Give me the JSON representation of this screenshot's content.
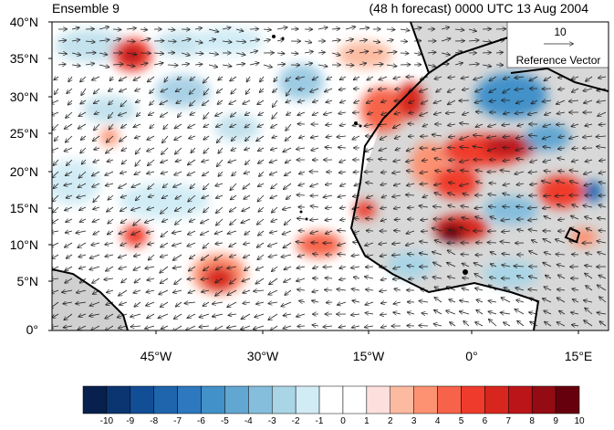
{
  "header": {
    "left_title": "Ensemble 9",
    "right_title": "(48 h forecast) 0000 UTC 13 Aug 2004"
  },
  "map": {
    "lat_labels": [
      "40°N",
      "35°N",
      "30°N",
      "25°N",
      "20°N",
      "15°N",
      "10°N",
      "5°N",
      "0°"
    ],
    "lon_labels": [
      "45°W",
      "30°W",
      "15°W",
      "0°",
      "15°E"
    ],
    "land_color": "#d0d0d0",
    "ocean_color": "#ffffff"
  },
  "reference_vector": {
    "value": "10",
    "label": "Reference Vector"
  },
  "colorbar": {
    "labels": [
      "-10",
      "-9",
      "-8",
      "-7",
      "-6",
      "-5",
      "-4",
      "-3",
      "-2",
      "-1",
      "0",
      "1",
      "2",
      "3",
      "4",
      "5",
      "6",
      "7",
      "8",
      "9",
      "10"
    ],
    "colors": [
      "#08204d",
      "#0b3570",
      "#124e96",
      "#1f65ad",
      "#2d78bf",
      "#4291c9",
      "#62a6d2",
      "#85bedc",
      "#a9d5e6",
      "#d2ecf5",
      "#ffffff",
      "#ffffff",
      "#fde0dd",
      "#fcbba1",
      "#fc9272",
      "#f6634a",
      "#ef3b2c",
      "#d7261e",
      "#bb151a",
      "#940b13",
      "#67000d"
    ]
  }
}
